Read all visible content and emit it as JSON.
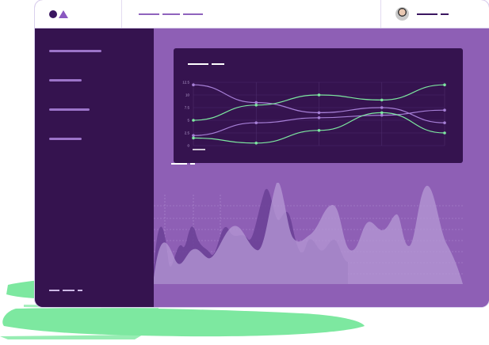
{
  "colors": {
    "sidebar": "#35134f",
    "main": "#8e5fb5",
    "card": "#35134f",
    "accent_green": "#7de8a0",
    "accent_lilac": "#a67fd6"
  },
  "header": {
    "logo": "circle-triangle-logo"
  },
  "chart_data": {
    "type": "line",
    "yticks": [
      "0",
      "2.5",
      "5",
      "7.5",
      "10",
      "12.5"
    ],
    "ylim": [
      0,
      12.5
    ],
    "x": [
      0,
      1,
      2,
      3,
      4
    ],
    "series": [
      {
        "values": [
          12,
          8.5,
          6.5,
          7.5,
          4.5
        ],
        "color": "#a67fd6"
      },
      {
        "values": [
          2,
          4.5,
          5.5,
          6,
          7
        ],
        "color": "#a67fd6"
      },
      {
        "values": [
          5,
          8,
          10,
          9,
          12
        ],
        "color": "#7de8a0"
      },
      {
        "values": [
          1.5,
          0.5,
          3,
          6.5,
          2.5
        ],
        "color": "#7de8a0"
      }
    ]
  }
}
